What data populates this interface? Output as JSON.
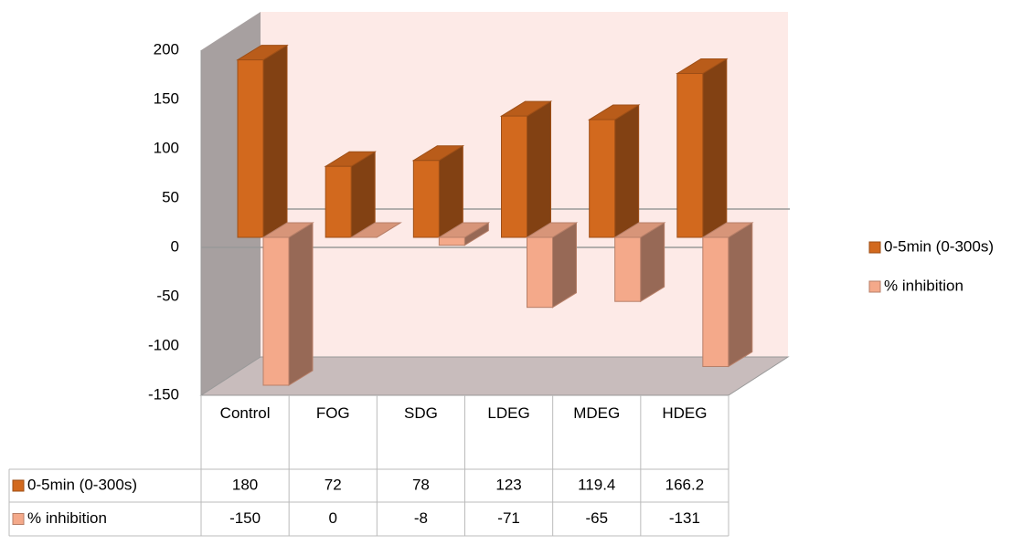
{
  "chart_data": {
    "type": "bar3d",
    "categories": [
      "Control",
      "FOG",
      "SDG",
      "LDEG",
      "MDEG",
      "HDEG"
    ],
    "series": [
      {
        "name": "0-5min (0-300s)",
        "color": "#d2691e",
        "values": [
          180,
          72,
          78,
          123,
          119.4,
          166.2
        ]
      },
      {
        "name": "% inhibition",
        "color": "#f4a98a",
        "values": [
          -150,
          0,
          -8,
          -71,
          -65,
          -131
        ]
      }
    ],
    "ylim": [
      -150,
      200
    ],
    "yticks": [
      -150,
      -100,
      -50,
      0,
      50,
      100,
      150,
      200
    ],
    "legend": "right",
    "data_table": true
  }
}
